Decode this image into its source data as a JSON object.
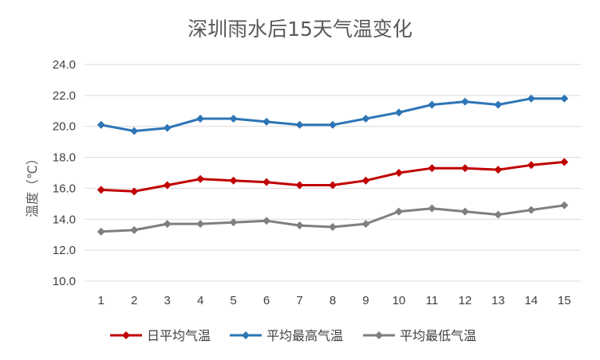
{
  "chart_data": {
    "type": "line",
    "title": "深圳雨水后15天气温变化",
    "ylabel": "温度（℃）",
    "xlabel": "",
    "categories": [
      "1",
      "2",
      "3",
      "4",
      "5",
      "6",
      "7",
      "8",
      "9",
      "10",
      "11",
      "12",
      "13",
      "14",
      "15"
    ],
    "ylim": [
      10.0,
      24.0
    ],
    "yticks": [
      "10.0",
      "12.0",
      "14.0",
      "16.0",
      "18.0",
      "20.0",
      "22.0",
      "24.0"
    ],
    "grid": true,
    "legend": "bottom",
    "series": [
      {
        "name": "日平均气温",
        "color": "#c00000",
        "values": [
          15.9,
          15.8,
          16.2,
          16.6,
          16.5,
          16.4,
          16.2,
          16.2,
          16.5,
          17.0,
          17.3,
          17.3,
          17.2,
          17.5,
          17.7
        ]
      },
      {
        "name": "平均最高气温",
        "color": "#2e75b6",
        "values": [
          20.1,
          19.7,
          19.9,
          20.5,
          20.5,
          20.3,
          20.1,
          20.1,
          20.5,
          20.9,
          21.4,
          21.6,
          21.4,
          21.8,
          21.8
        ]
      },
      {
        "name": "平均最低气温",
        "color": "#7f7f7f",
        "values": [
          13.2,
          13.3,
          13.7,
          13.7,
          13.8,
          13.9,
          13.6,
          13.5,
          13.7,
          14.5,
          14.7,
          14.5,
          14.3,
          14.6,
          14.9
        ]
      }
    ]
  }
}
